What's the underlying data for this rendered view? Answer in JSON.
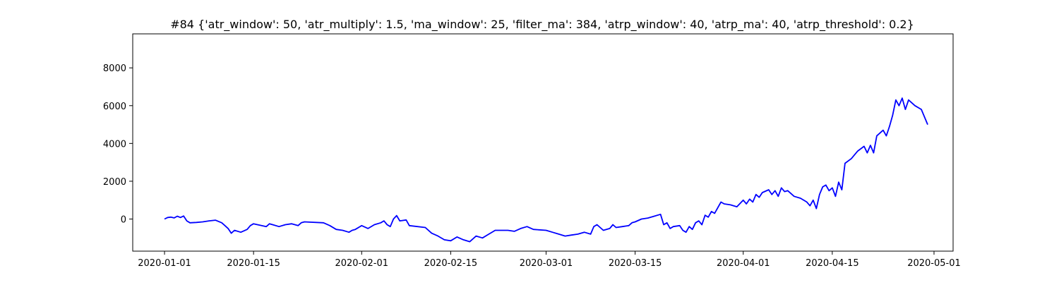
{
  "chart_data": {
    "type": "line",
    "title": "#84 {'atr_window': 50, 'atr_multiply': 1.5, 'ma_window': 25, 'filter_ma': 384, 'atrp_window': 40, 'atrp_ma': 40, 'atrp_threshold': 0.2}",
    "xlabel": "",
    "ylabel": "",
    "grid": false,
    "legend": "none",
    "x_range": [
      "2019-12-27",
      "2020-05-04"
    ],
    "ylim": [
      -1700,
      9800
    ],
    "x_ticks": [
      "2020-01-01",
      "2020-01-15",
      "2020-02-01",
      "2020-02-15",
      "2020-03-01",
      "2020-03-15",
      "2020-04-01",
      "2020-04-15",
      "2020-05-01"
    ],
    "y_ticks": [
      0,
      2000,
      4000,
      6000,
      8000
    ],
    "series": [
      {
        "color": "#0000ff",
        "points": [
          [
            "2020-01-01",
            0
          ],
          [
            "2020-01-01T12",
            80
          ],
          [
            "2020-01-02",
            100
          ],
          [
            "2020-01-02T12",
            60
          ],
          [
            "2020-01-03",
            150
          ],
          [
            "2020-01-03T12",
            80
          ],
          [
            "2020-01-04",
            160
          ],
          [
            "2020-01-04T12",
            -100
          ],
          [
            "2020-01-05",
            -200
          ],
          [
            "2020-01-06",
            -180
          ],
          [
            "2020-01-07",
            -150
          ],
          [
            "2020-01-08",
            -100
          ],
          [
            "2020-01-09",
            -60
          ],
          [
            "2020-01-10",
            -200
          ],
          [
            "2020-01-10T12",
            -350
          ],
          [
            "2020-01-11",
            -500
          ],
          [
            "2020-01-11T12",
            -750
          ],
          [
            "2020-01-12",
            -600
          ],
          [
            "2020-01-13",
            -700
          ],
          [
            "2020-01-14",
            -550
          ],
          [
            "2020-01-14T12",
            -350
          ],
          [
            "2020-01-15",
            -250
          ],
          [
            "2020-01-17",
            -400
          ],
          [
            "2020-01-17T12",
            -250
          ],
          [
            "2020-01-18",
            -300
          ],
          [
            "2020-01-19",
            -400
          ],
          [
            "2020-01-20",
            -300
          ],
          [
            "2020-01-21",
            -250
          ],
          [
            "2020-01-22",
            -350
          ],
          [
            "2020-01-22T12",
            -200
          ],
          [
            "2020-01-23",
            -150
          ],
          [
            "2020-01-26",
            -200
          ],
          [
            "2020-01-27",
            -350
          ],
          [
            "2020-01-28",
            -550
          ],
          [
            "2020-01-29",
            -600
          ],
          [
            "2020-01-30",
            -700
          ],
          [
            "2020-01-30T12",
            -600
          ],
          [
            "2020-01-31",
            -550
          ],
          [
            "2020-02-01",
            -350
          ],
          [
            "2020-02-02",
            -500
          ],
          [
            "2020-02-03",
            -300
          ],
          [
            "2020-02-04",
            -200
          ],
          [
            "2020-02-04T12",
            -100
          ],
          [
            "2020-02-05",
            -300
          ],
          [
            "2020-02-05T12",
            -400
          ],
          [
            "2020-02-06",
            0
          ],
          [
            "2020-02-06T12",
            180
          ],
          [
            "2020-02-07",
            -100
          ],
          [
            "2020-02-08",
            -50
          ],
          [
            "2020-02-08T12",
            -350
          ],
          [
            "2020-02-11",
            -450
          ],
          [
            "2020-02-12",
            -750
          ],
          [
            "2020-02-13",
            -900
          ],
          [
            "2020-02-14",
            -1100
          ],
          [
            "2020-02-15",
            -1150
          ],
          [
            "2020-02-16",
            -950
          ],
          [
            "2020-02-17",
            -1100
          ],
          [
            "2020-02-18",
            -1200
          ],
          [
            "2020-02-19",
            -900
          ],
          [
            "2020-02-20",
            -1000
          ],
          [
            "2020-02-21",
            -800
          ],
          [
            "2020-02-22",
            -600
          ],
          [
            "2020-02-24",
            -600
          ],
          [
            "2020-02-25",
            -650
          ],
          [
            "2020-02-26",
            -500
          ],
          [
            "2020-02-27",
            -400
          ],
          [
            "2020-02-28",
            -550
          ],
          [
            "2020-03-01",
            -600
          ],
          [
            "2020-03-02",
            -700
          ],
          [
            "2020-03-03",
            -800
          ],
          [
            "2020-03-04",
            -900
          ],
          [
            "2020-03-05",
            -850
          ],
          [
            "2020-03-06",
            -800
          ],
          [
            "2020-03-07",
            -700
          ],
          [
            "2020-03-08",
            -800
          ],
          [
            "2020-03-08T12",
            -400
          ],
          [
            "2020-03-09",
            -300
          ],
          [
            "2020-03-09T12",
            -450
          ],
          [
            "2020-03-10",
            -600
          ],
          [
            "2020-03-11",
            -500
          ],
          [
            "2020-03-11T12",
            -300
          ],
          [
            "2020-03-12",
            -450
          ],
          [
            "2020-03-13",
            -400
          ],
          [
            "2020-03-14",
            -350
          ],
          [
            "2020-03-14T12",
            -200
          ],
          [
            "2020-03-15",
            -150
          ],
          [
            "2020-03-16",
            0
          ],
          [
            "2020-03-17",
            50
          ],
          [
            "2020-03-18",
            150
          ],
          [
            "2020-03-19",
            250
          ],
          [
            "2020-03-19T12",
            -300
          ],
          [
            "2020-03-20",
            -200
          ],
          [
            "2020-03-20T12",
            -500
          ],
          [
            "2020-03-21",
            -400
          ],
          [
            "2020-03-22",
            -350
          ],
          [
            "2020-03-22T12",
            -600
          ],
          [
            "2020-03-23",
            -700
          ],
          [
            "2020-03-23T12",
            -400
          ],
          [
            "2020-03-24",
            -550
          ],
          [
            "2020-03-24T12",
            -200
          ],
          [
            "2020-03-25",
            -100
          ],
          [
            "2020-03-25T12",
            -300
          ],
          [
            "2020-03-26",
            200
          ],
          [
            "2020-03-26T12",
            100
          ],
          [
            "2020-03-27",
            400
          ],
          [
            "2020-03-27T12",
            300
          ],
          [
            "2020-03-28",
            600
          ],
          [
            "2020-03-28T12",
            900
          ],
          [
            "2020-03-29",
            800
          ],
          [
            "2020-03-30",
            750
          ],
          [
            "2020-03-31",
            650
          ],
          [
            "2020-04-01",
            1000
          ],
          [
            "2020-04-01T12",
            800
          ],
          [
            "2020-04-02",
            1050
          ],
          [
            "2020-04-02T12",
            900
          ],
          [
            "2020-04-03",
            1300
          ],
          [
            "2020-04-03T12",
            1150
          ],
          [
            "2020-04-04",
            1400
          ],
          [
            "2020-04-05",
            1550
          ],
          [
            "2020-04-05T12",
            1300
          ],
          [
            "2020-04-06",
            1500
          ],
          [
            "2020-04-06T12",
            1200
          ],
          [
            "2020-04-07",
            1650
          ],
          [
            "2020-04-07T12",
            1450
          ],
          [
            "2020-04-08",
            1500
          ],
          [
            "2020-04-09",
            1200
          ],
          [
            "2020-04-10",
            1100
          ],
          [
            "2020-04-11",
            900
          ],
          [
            "2020-04-11T12",
            700
          ],
          [
            "2020-04-12",
            1000
          ],
          [
            "2020-04-12T12",
            550
          ],
          [
            "2020-04-13",
            1300
          ],
          [
            "2020-04-13T12",
            1700
          ],
          [
            "2020-04-14",
            1800
          ],
          [
            "2020-04-14T12",
            1500
          ],
          [
            "2020-04-15",
            1650
          ],
          [
            "2020-04-15T12",
            1200
          ],
          [
            "2020-04-16",
            1950
          ],
          [
            "2020-04-16T12",
            1550
          ],
          [
            "2020-04-17",
            2950
          ],
          [
            "2020-04-18",
            3200
          ],
          [
            "2020-04-19",
            3600
          ],
          [
            "2020-04-20",
            3850
          ],
          [
            "2020-04-20T12",
            3500
          ],
          [
            "2020-04-21",
            3900
          ],
          [
            "2020-04-21T12",
            3500
          ],
          [
            "2020-04-22",
            4400
          ],
          [
            "2020-04-23",
            4700
          ],
          [
            "2020-04-23T12",
            4400
          ],
          [
            "2020-04-24",
            4900
          ],
          [
            "2020-04-24T12",
            5500
          ],
          [
            "2020-04-25",
            6300
          ],
          [
            "2020-04-25T12",
            6000
          ],
          [
            "2020-04-26",
            6400
          ],
          [
            "2020-04-26T12",
            5800
          ],
          [
            "2020-04-27",
            6300
          ],
          [
            "2020-04-28",
            6000
          ],
          [
            "2020-04-29",
            5800
          ],
          [
            "2020-04-30",
            5000
          ]
        ]
      }
    ]
  }
}
